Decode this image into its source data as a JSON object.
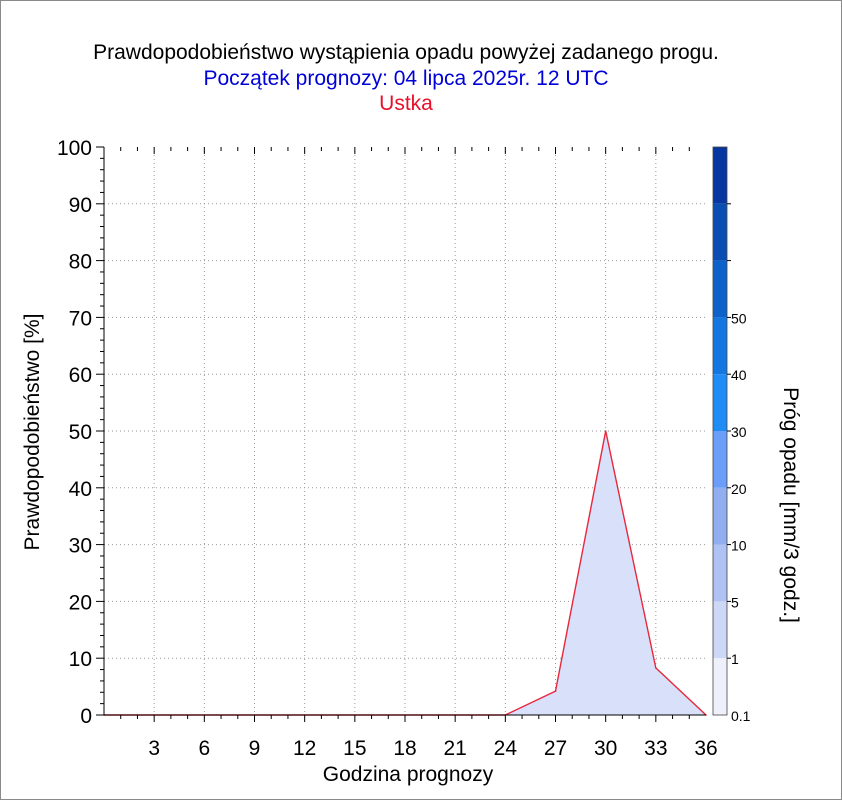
{
  "titles": {
    "main": "Prawdopodobieństwo wystąpienia opadu powyżej zadanego progu.",
    "forecast_start": "Początek prognozy: 04 lipca 2025r. 12 UTC",
    "station": "Ustka"
  },
  "colors": {
    "title_main": "#000000",
    "title_forecast": "#0000d8",
    "title_station": "#e8102a",
    "series_line": "#e8283c",
    "series_fill": "#d8e0fa",
    "colorbar": [
      "#eef1fb",
      "#cdd7f6",
      "#b0c1f3",
      "#90aef0",
      "#6a9ef8",
      "#1f8cf5",
      "#1476e0",
      "#0c62c8",
      "#0a4eb4",
      "#0636a0"
    ]
  },
  "chart_data": {
    "type": "area",
    "xlabel": "Godzina prognozy",
    "ylabel": "Prawdopodobieństwo [%]",
    "xlim": [
      0,
      36
    ],
    "ylim": [
      0,
      100
    ],
    "xticks": [
      3,
      6,
      9,
      12,
      15,
      18,
      21,
      24,
      27,
      30,
      33,
      36
    ],
    "yticks": [
      0,
      10,
      20,
      30,
      40,
      50,
      60,
      70,
      80,
      90,
      100
    ],
    "grid": true,
    "x": [
      0,
      3,
      6,
      9,
      12,
      15,
      18,
      21,
      24,
      27,
      30,
      33,
      36
    ],
    "series": [
      {
        "values": [
          0,
          0,
          0,
          0,
          0,
          0,
          0,
          0,
          0,
          4.2,
          50,
          8.3,
          0
        ]
      }
    ],
    "colorbar": {
      "label": "Próg opadu [mm/3 godz.]",
      "tick_labels": [
        "0.1",
        "1",
        "5",
        "10",
        "20",
        "30",
        "40",
        "50"
      ]
    }
  }
}
